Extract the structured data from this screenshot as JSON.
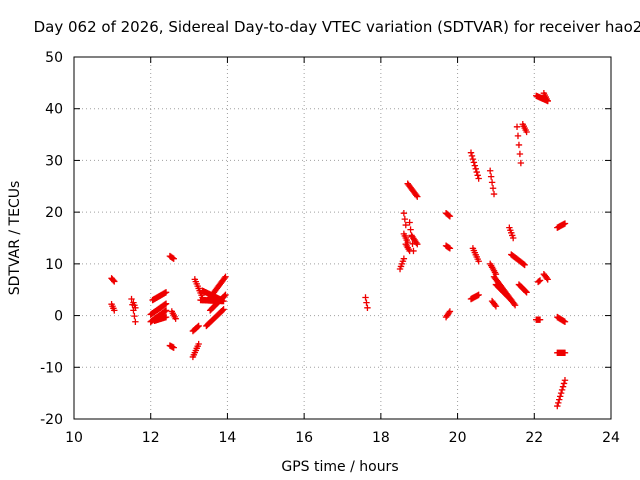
{
  "chart_data": {
    "type": "scatter",
    "title": "Day 062 of 2026, Sidereal Day-to-day VTEC variation (SDTVAR) for receiver hao2",
    "xlabel": "GPS time / hours",
    "ylabel": "SDTVAR / TECUs",
    "xlim": [
      10,
      24
    ],
    "ylim": [
      -20,
      50
    ],
    "xticks": [
      "10",
      "12",
      "14",
      "16",
      "18",
      "20",
      "22",
      "24"
    ],
    "yticks": [
      "-20",
      "-10",
      "0",
      "10",
      "20",
      "30",
      "40",
      "50"
    ],
    "grid": true,
    "marker": "+",
    "color": "#ee0000",
    "segments": [
      {
        "x0": 10.98,
        "x1": 11.05,
        "y0": 7.2,
        "y1": 6.6
      },
      {
        "x0": 10.98,
        "x1": 11.05,
        "y0": 2.2,
        "y1": 1.0
      },
      {
        "x0": 11.5,
        "x1": 11.6,
        "y0": 3.2,
        "y1": -1.2
      },
      {
        "x0": 11.55,
        "x1": 11.6,
        "y0": 2.5,
        "y1": 1.5
      },
      {
        "x0": 12.0,
        "x1": 12.4,
        "y0": -1.2,
        "y1": 1.0
      },
      {
        "x0": 12.0,
        "x1": 12.4,
        "y0": 0.2,
        "y1": 2.3
      },
      {
        "x0": 12.05,
        "x1": 12.4,
        "y0": 3.0,
        "y1": 4.5
      },
      {
        "x0": 12.1,
        "x1": 12.4,
        "y0": -1.0,
        "y1": -0.3
      },
      {
        "x0": 12.5,
        "x1": 12.6,
        "y0": 11.5,
        "y1": 11.0
      },
      {
        "x0": 12.5,
        "x1": 12.6,
        "y0": -5.8,
        "y1": -6.2
      },
      {
        "x0": 12.55,
        "x1": 12.65,
        "y0": 0.8,
        "y1": -0.6
      },
      {
        "x0": 13.1,
        "x1": 13.25,
        "y0": -8.0,
        "y1": -5.5
      },
      {
        "x0": 13.1,
        "x1": 13.25,
        "y0": -3.0,
        "y1": -2.0
      },
      {
        "x0": 13.15,
        "x1": 13.35,
        "y0": 7.0,
        "y1": 3.5
      },
      {
        "x0": 13.3,
        "x1": 13.9,
        "y0": 3.0,
        "y1": 2.8
      },
      {
        "x0": 13.35,
        "x1": 13.85,
        "y0": 4.8,
        "y1": 3.0
      },
      {
        "x0": 13.45,
        "x1": 13.9,
        "y0": -2.0,
        "y1": 1.2
      },
      {
        "x0": 13.5,
        "x1": 13.95,
        "y0": 3.0,
        "y1": 7.5
      },
      {
        "x0": 13.55,
        "x1": 13.95,
        "y0": 1.0,
        "y1": 4.0
      },
      {
        "x0": 17.6,
        "x1": 17.65,
        "y0": 3.5,
        "y1": 1.5
      },
      {
        "x0": 18.5,
        "x1": 18.6,
        "y0": 9.0,
        "y1": 11.0
      },
      {
        "x0": 18.6,
        "x1": 18.65,
        "y0": 19.8,
        "y1": 17.5
      },
      {
        "x0": 18.6,
        "x1": 18.7,
        "y0": 15.8,
        "y1": 14.2
      },
      {
        "x0": 18.65,
        "x1": 18.75,
        "y0": 13.8,
        "y1": 12.5
      },
      {
        "x0": 18.7,
        "x1": 18.95,
        "y0": 25.5,
        "y1": 23.0
      },
      {
        "x0": 18.75,
        "x1": 18.85,
        "y0": 18.0,
        "y1": 12.5
      },
      {
        "x0": 18.8,
        "x1": 18.95,
        "y0": 15.5,
        "y1": 13.8
      },
      {
        "x0": 19.7,
        "x1": 19.8,
        "y0": 19.8,
        "y1": 19.2
      },
      {
        "x0": 19.7,
        "x1": 19.8,
        "y0": 13.5,
        "y1": 13.0
      },
      {
        "x0": 19.7,
        "x1": 19.8,
        "y0": -0.3,
        "y1": 0.8
      },
      {
        "x0": 20.35,
        "x1": 20.55,
        "y0": 31.5,
        "y1": 26.5
      },
      {
        "x0": 20.4,
        "x1": 20.55,
        "y0": 13.0,
        "y1": 10.5
      },
      {
        "x0": 20.35,
        "x1": 20.55,
        "y0": 3.2,
        "y1": 4.0
      },
      {
        "x0": 20.85,
        "x1": 20.95,
        "y0": 28.0,
        "y1": 23.5
      },
      {
        "x0": 20.85,
        "x1": 21.0,
        "y0": 10.0,
        "y1": 8.0
      },
      {
        "x0": 20.9,
        "x1": 21.0,
        "y0": 2.8,
        "y1": 1.8
      },
      {
        "x0": 20.95,
        "x1": 21.5,
        "y0": 7.5,
        "y1": 2.0
      },
      {
        "x0": 21.0,
        "x1": 21.4,
        "y0": 6.0,
        "y1": 3.0
      },
      {
        "x0": 21.35,
        "x1": 21.45,
        "y0": 17.0,
        "y1": 15.0
      },
      {
        "x0": 21.4,
        "x1": 21.75,
        "y0": 11.8,
        "y1": 9.8
      },
      {
        "x0": 21.55,
        "x1": 21.65,
        "y0": 36.5,
        "y1": 29.5
      },
      {
        "x0": 21.7,
        "x1": 21.8,
        "y0": 37.0,
        "y1": 35.5
      },
      {
        "x0": 21.6,
        "x1": 21.8,
        "y0": 6.0,
        "y1": 4.5
      },
      {
        "x0": 22.05,
        "x1": 22.35,
        "y0": 42.5,
        "y1": 41.5
      },
      {
        "x0": 22.25,
        "x1": 22.35,
        "y0": 43.0,
        "y1": 41.5
      },
      {
        "x0": 22.1,
        "x1": 22.15,
        "y0": 6.5,
        "y1": 6.8
      },
      {
        "x0": 22.25,
        "x1": 22.35,
        "y0": 8.0,
        "y1": 7.0
      },
      {
        "x0": 22.05,
        "x1": 22.15,
        "y0": -0.8,
        "y1": -0.8
      },
      {
        "x0": 22.6,
        "x1": 22.8,
        "y0": 17.0,
        "y1": 17.8
      },
      {
        "x0": 22.6,
        "x1": 22.8,
        "y0": -0.3,
        "y1": -1.2
      },
      {
        "x0": 22.6,
        "x1": 22.8,
        "y0": -7.2,
        "y1": -7.2
      },
      {
        "x0": 22.6,
        "x1": 22.8,
        "y0": -17.5,
        "y1": -12.5
      }
    ]
  }
}
